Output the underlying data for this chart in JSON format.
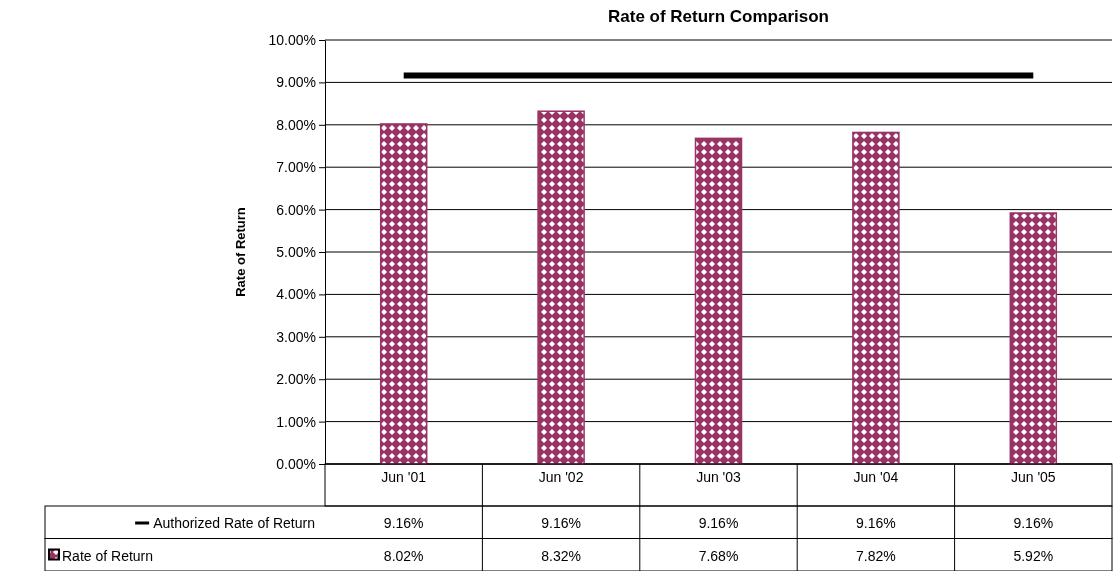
{
  "chart_data": {
    "type": "bar",
    "title": "Rate of Return Comparison",
    "ylabel": "Rate of Return",
    "categories": [
      "Jun '01",
      "Jun '02",
      "Jun '03",
      "Jun '04",
      "Jun '05"
    ],
    "series": [
      {
        "name": "Authorized Rate of Return",
        "type": "line",
        "color": "#000000",
        "values": [
          9.16,
          9.16,
          9.16,
          9.16,
          9.16
        ],
        "value_labels": [
          "9.16%",
          "9.16%",
          "9.16%",
          "9.16%",
          "9.16%"
        ]
      },
      {
        "name": "Rate of Return",
        "color": "#993366",
        "values": [
          8.02,
          8.32,
          7.68,
          7.82,
          5.92
        ],
        "value_labels": [
          "8.02%",
          "8.32%",
          "7.68%",
          "7.82%",
          "5.92%"
        ]
      }
    ],
    "ylim": [
      0,
      10
    ],
    "yticks": [
      {
        "value": 0,
        "label": "0.00%"
      },
      {
        "value": 1,
        "label": "1.00%"
      },
      {
        "value": 2,
        "label": "2.00%"
      },
      {
        "value": 3,
        "label": "3.00%"
      },
      {
        "value": 4,
        "label": "4.00%"
      },
      {
        "value": 5,
        "label": "5.00%"
      },
      {
        "value": 6,
        "label": "6.00%"
      },
      {
        "value": 7,
        "label": "7.00%"
      },
      {
        "value": 8,
        "label": "8.00%"
      },
      {
        "value": 9,
        "label": "9.00%"
      },
      {
        "value": 10,
        "label": "10.00%"
      }
    ],
    "grid": "y",
    "legend": "bottom",
    "marker": "none"
  }
}
